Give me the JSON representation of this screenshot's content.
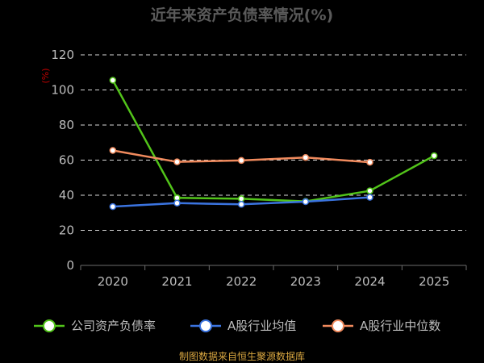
{
  "title": "近年来资产负债率情况(%)",
  "footer": "制图数据来自恒生聚源数据库",
  "chart_data": {
    "type": "line",
    "title": "近年来资产负债率情况(%)",
    "ylabel": "(%)",
    "ylim": [
      0,
      120
    ],
    "yticks": [
      0,
      20,
      40,
      60,
      80,
      100,
      120
    ],
    "grid": true,
    "legend_position": "bottom",
    "categories": [
      "2020",
      "2021",
      "2022",
      "2023",
      "2024",
      "2025"
    ],
    "series": [
      {
        "name": "公司资产负债率",
        "color": "#52c41a",
        "values": [
          105.5,
          38.5,
          38.0,
          36.5,
          42.5,
          62.5
        ]
      },
      {
        "name": "A股行业均值",
        "color": "#3b74e0",
        "values": [
          33.5,
          35.5,
          34.8,
          36.3,
          38.8,
          null
        ]
      },
      {
        "name": "A股行业中位数",
        "color": "#f08a5d",
        "values": [
          65.5,
          59.0,
          59.8,
          61.5,
          58.8,
          null
        ]
      }
    ]
  }
}
